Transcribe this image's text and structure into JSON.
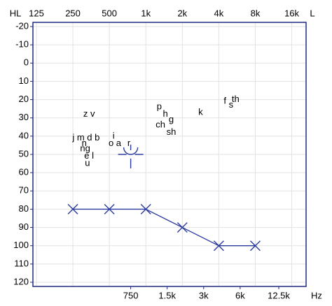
{
  "chart_data": {
    "type": "audiogram",
    "x_label_top": "L",
    "y_label": "HL",
    "x_label_bottom": "Hz",
    "xlim": [
      117,
      21000
    ],
    "ylim": [
      -22.3,
      122.3
    ],
    "log_x": true,
    "y_reversed": true,
    "grid": true,
    "xticks": [
      125,
      250,
      500,
      {
        "value": 1000,
        "label": "1k"
      },
      {
        "value": 2000,
        "label": "2k"
      },
      {
        "value": 4000,
        "label": "4k"
      },
      {
        "value": 8000,
        "label": "8k"
      },
      {
        "value": 16000,
        "label": "16k"
      }
    ],
    "xticks_bottom": [
      750,
      {
        "value": 1500,
        "label": "1.5k"
      },
      {
        "value": 3000,
        "label": "3k"
      },
      {
        "value": 6000,
        "label": "6k"
      },
      {
        "value": 12500,
        "label": "12.5k"
      }
    ],
    "yticks": [
      -20,
      -10,
      0,
      10,
      20,
      30,
      40,
      50,
      60,
      70,
      80,
      90,
      100,
      110,
      120
    ],
    "series": [
      {
        "color": "#2b3a9e",
        "marker": "x",
        "line": true,
        "x": [
          250,
          500,
          1000,
          2000,
          4000,
          8000
        ],
        "values": [
          80,
          80,
          80,
          90,
          100,
          100
        ]
      },
      {
        "color": "#2b3a9e",
        "marker": "circle-cross",
        "line": false,
        "x": [
          750
        ],
        "values": [
          50
        ]
      }
    ],
    "annotations": [
      {
        "text": "z v",
        "x": 340,
        "y": 28
      },
      {
        "text": "j m d b",
        "x": 321,
        "y": 41
      },
      {
        "text": "n",
        "x": 310,
        "y": 44
      },
      {
        "text": "ng",
        "x": 316,
        "y": 47
      },
      {
        "text": "e l",
        "x": 340,
        "y": 51
      },
      {
        "text": "u",
        "x": 330,
        "y": 55
      },
      {
        "text": "i",
        "x": 542,
        "y": 40
      },
      {
        "text": "o a",
        "x": 555,
        "y": 44
      },
      {
        "text": "r",
        "x": 725,
        "y": 44
      },
      {
        "text": "p",
        "x": 1290,
        "y": 24
      },
      {
        "text": "h",
        "x": 1450,
        "y": 28
      },
      {
        "text": "g",
        "x": 1620,
        "y": 31
      },
      {
        "text": "ch",
        "x": 1320,
        "y": 34
      },
      {
        "text": "sh",
        "x": 1620,
        "y": 38
      },
      {
        "text": "k",
        "x": 2830,
        "y": 27
      },
      {
        "text": "f",
        "x": 4500,
        "y": 21
      },
      {
        "text": "s",
        "x": 5050,
        "y": 23
      },
      {
        "text": "th",
        "x": 5500,
        "y": 20
      }
    ]
  }
}
